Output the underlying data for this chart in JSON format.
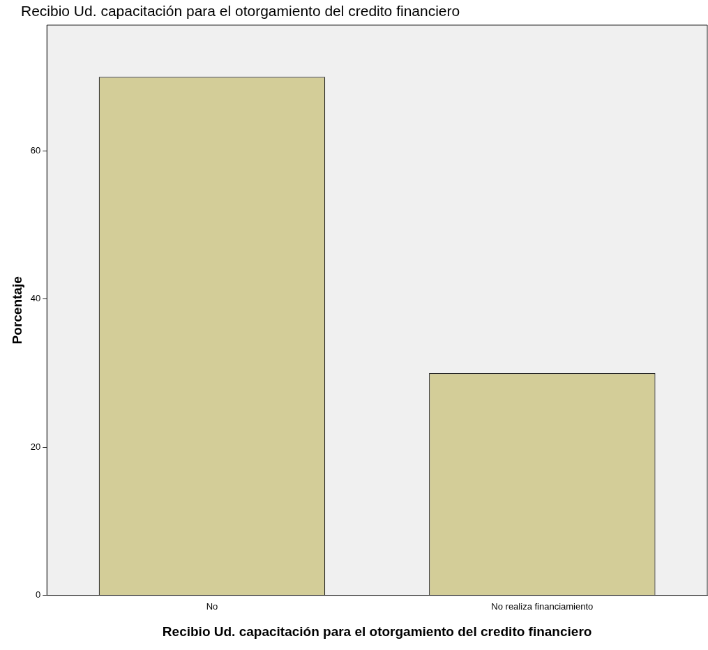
{
  "chart_data": {
    "type": "bar",
    "title": "Recibio Ud. capacitación para el otorgamiento del credito financiero",
    "xlabel": "Recibio Ud. capacitación para el otorgamiento del credito financiero",
    "ylabel": "Porcentaje",
    "categories": [
      "No",
      "No realiza financiamiento"
    ],
    "values": [
      70,
      30
    ],
    "color": "#d3cd98",
    "ylim": [
      0,
      77
    ],
    "yticks": [
      0,
      20,
      40,
      60
    ],
    "grid": false,
    "legend": false
  }
}
